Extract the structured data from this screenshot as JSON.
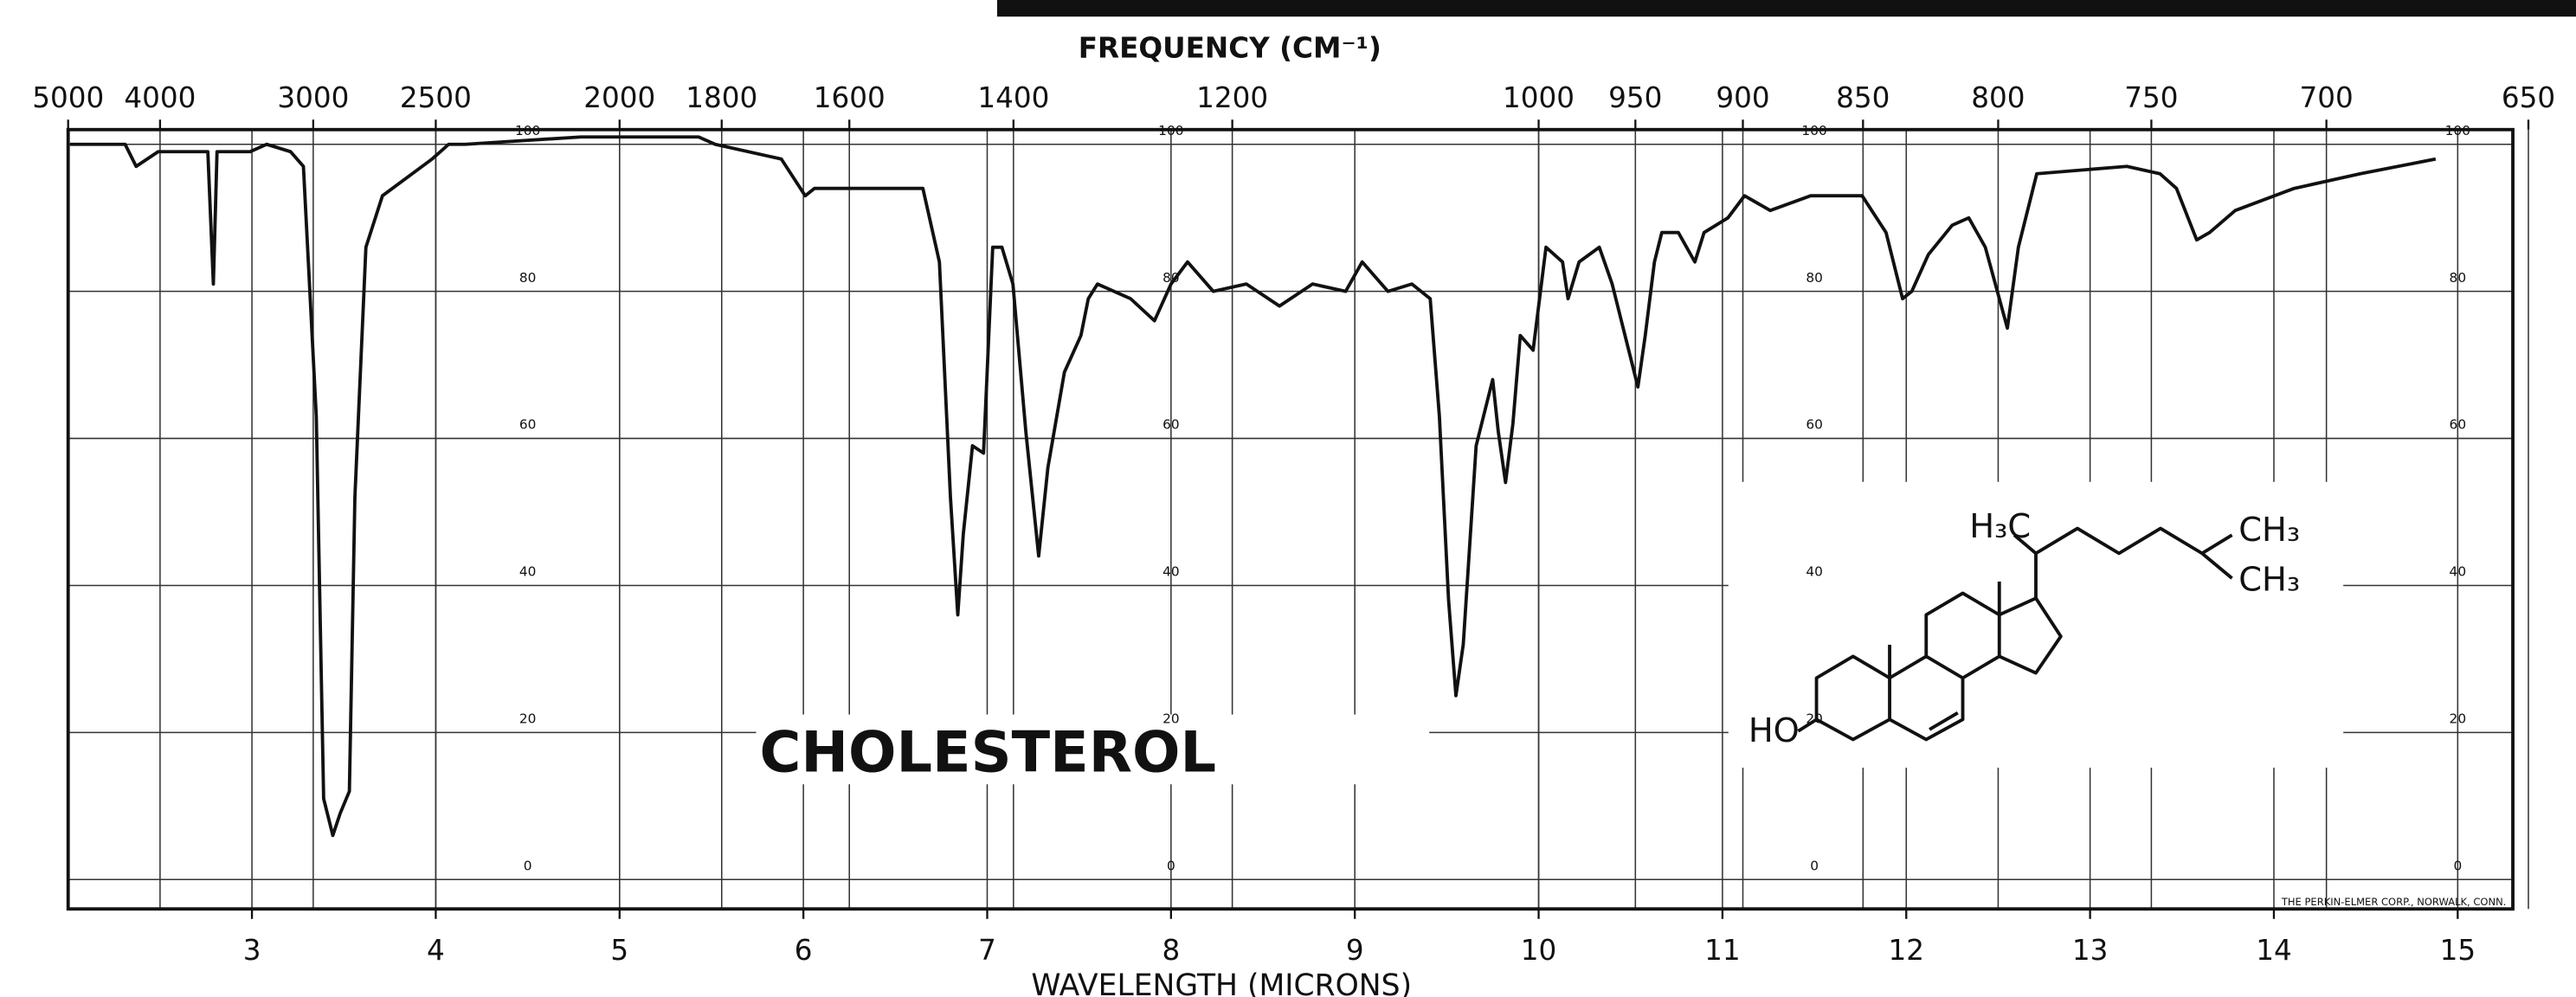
{
  "chart_data": {
    "type": "line",
    "x_label": "WAVELENGTH (MICRONS)",
    "x2_label": "FREQUENCY (CM⁻¹)",
    "annotation": "CHOLESTEROL",
    "structure_labels": [
      "H₃C",
      "CH₃",
      "CH₃",
      "HO"
    ],
    "credit": "THE PERKIN-ELMER CORP., NORWALK, CONN.",
    "color": "#111111",
    "grid": true,
    "xlim": [
      2,
      15.3
    ],
    "xticks": [
      3,
      4,
      5,
      6,
      7,
      8,
      9,
      10,
      11,
      12,
      13,
      14,
      15
    ],
    "x2ticks": [
      5000,
      4000,
      3000,
      2500,
      2000,
      1800,
      1600,
      1400,
      1200,
      1000,
      950,
      900,
      850,
      800,
      750,
      700,
      650
    ],
    "ylim": [
      -4,
      102
    ],
    "yticks": [
      0,
      20,
      40,
      60,
      80,
      100
    ],
    "x": [
      2.01,
      2.17,
      2.31,
      2.37,
      2.49,
      2.76,
      2.79,
      2.81,
      2.99,
      3.08,
      3.21,
      3.28,
      3.35,
      3.39,
      3.44,
      3.48,
      3.53,
      3.56,
      3.62,
      3.71,
      3.98,
      4.07,
      4.16,
      4.79,
      5.43,
      5.52,
      5.88,
      6.01,
      6.06,
      6.33,
      6.65,
      6.74,
      6.8,
      6.84,
      6.87,
      6.92,
      6.98,
      7.03,
      7.08,
      7.14,
      7.21,
      7.28,
      7.33,
      7.42,
      7.51,
      7.55,
      7.6,
      7.78,
      7.91,
      8.0,
      8.09,
      8.23,
      8.41,
      8.59,
      8.77,
      8.95,
      9.04,
      9.18,
      9.31,
      9.41,
      9.46,
      9.51,
      9.55,
      9.59,
      9.66,
      9.75,
      9.78,
      9.82,
      9.86,
      9.9,
      9.97,
      10.04,
      10.13,
      10.16,
      10.22,
      10.33,
      10.4,
      10.47,
      10.54,
      10.58,
      10.63,
      10.67,
      10.76,
      10.85,
      10.9,
      11.03,
      11.12,
      11.26,
      11.48,
      11.76,
      11.89,
      11.98,
      12.03,
      12.12,
      12.25,
      12.34,
      12.43,
      12.55,
      12.61,
      12.71,
      13.2,
      13.38,
      13.47,
      13.58,
      13.65,
      13.79,
      14.11,
      14.47,
      14.88
    ],
    "values": [
      100,
      100,
      100,
      97,
      99,
      99,
      81,
      99,
      99,
      100,
      99,
      97,
      63,
      11,
      6,
      9,
      12,
      52,
      86,
      93,
      98,
      100,
      100,
      101,
      101,
      100,
      98,
      93,
      94,
      94,
      94,
      84,
      52,
      36,
      47,
      59,
      58,
      86,
      86,
      81,
      61,
      44,
      56,
      69,
      74,
      79,
      81,
      79,
      76,
      81,
      84,
      80,
      81,
      78,
      81,
      80,
      84,
      80,
      81,
      79,
      63,
      38,
      25,
      32,
      59,
      68,
      61,
      54,
      62,
      74,
      72,
      86,
      84,
      79,
      84,
      86,
      81,
      74,
      67,
      74,
      84,
      88,
      88,
      84,
      88,
      90,
      93,
      91,
      93,
      93,
      88,
      79,
      80,
      85,
      89,
      90,
      86,
      75,
      86,
      96,
      97,
      96,
      94,
      87,
      88,
      91,
      94,
      96,
      98
    ]
  }
}
